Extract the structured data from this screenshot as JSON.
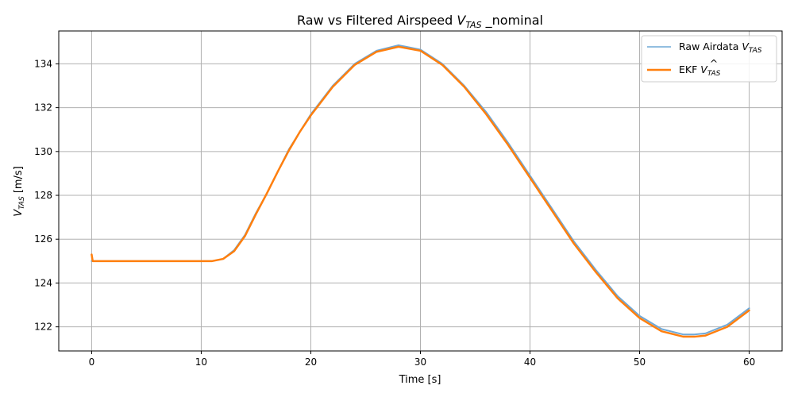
{
  "chart_data": {
    "type": "line",
    "title": "Raw vs Filtered Airspeed V_TAS _nominal",
    "xlabel": "Time [s]",
    "ylabel": "V_TAS [m/s]",
    "xlim": [
      -3,
      63
    ],
    "ylim": [
      120.9,
      135.5
    ],
    "xticks": [
      0,
      10,
      20,
      30,
      40,
      50,
      60
    ],
    "yticks": [
      122,
      124,
      126,
      128,
      130,
      132,
      134
    ],
    "grid": true,
    "legend_position": "top-right",
    "series": [
      {
        "name": "Raw Airdata V_TAS",
        "color": "#6fa8d6",
        "x": [
          0,
          2,
          4,
          6,
          8,
          10,
          11,
          12,
          13,
          14,
          15,
          16,
          17,
          18,
          19,
          20,
          22,
          24,
          26,
          28,
          30,
          32,
          34,
          36,
          38,
          40,
          42,
          44,
          46,
          48,
          50,
          52,
          54,
          55,
          56,
          58,
          60
        ],
        "y": [
          125.0,
          125.0,
          125.0,
          125.0,
          125.0,
          125.0,
          125.0,
          125.1,
          125.5,
          126.2,
          127.2,
          128.1,
          129.1,
          130.1,
          130.9,
          131.7,
          133.0,
          134.0,
          134.6,
          134.85,
          134.65,
          134.0,
          133.0,
          131.8,
          130.4,
          128.9,
          127.4,
          125.9,
          124.6,
          123.4,
          122.5,
          121.9,
          121.65,
          121.65,
          121.7,
          122.1,
          122.85
        ]
      },
      {
        "name": "EKF V̂_TAS",
        "color": "#ff7f0e",
        "x": [
          0,
          0.1,
          2,
          4,
          6,
          8,
          10,
          11,
          12,
          13,
          14,
          15,
          16,
          17,
          18,
          19,
          20,
          22,
          24,
          26,
          28,
          30,
          32,
          34,
          36,
          38,
          40,
          42,
          44,
          46,
          48,
          50,
          52,
          54,
          55,
          56,
          58,
          60
        ],
        "y": [
          125.3,
          125.0,
          125.0,
          125.0,
          125.0,
          125.0,
          125.0,
          125.0,
          125.1,
          125.45,
          126.15,
          127.15,
          128.1,
          129.1,
          130.05,
          130.9,
          131.65,
          132.95,
          133.95,
          134.55,
          134.78,
          134.6,
          133.95,
          132.95,
          131.7,
          130.3,
          128.8,
          127.3,
          125.8,
          124.5,
          123.3,
          122.4,
          121.8,
          121.55,
          121.55,
          121.6,
          122.0,
          122.75
        ]
      }
    ]
  },
  "title": {
    "prefix": "Raw vs Filtered Airspeed ",
    "var": "V",
    "sub": "TAS",
    "suffix": " _nominal"
  },
  "xlabel": "Time [s]",
  "ylabel": {
    "var": "V",
    "sub": "TAS",
    "suffix": " [m/s]"
  },
  "legend": [
    {
      "prefix": "Raw Airdata ",
      "var": "V",
      "sub": "TAS",
      "hat": false
    },
    {
      "prefix": "EKF ",
      "var": "V",
      "sub": "TAS",
      "hat": true
    }
  ]
}
